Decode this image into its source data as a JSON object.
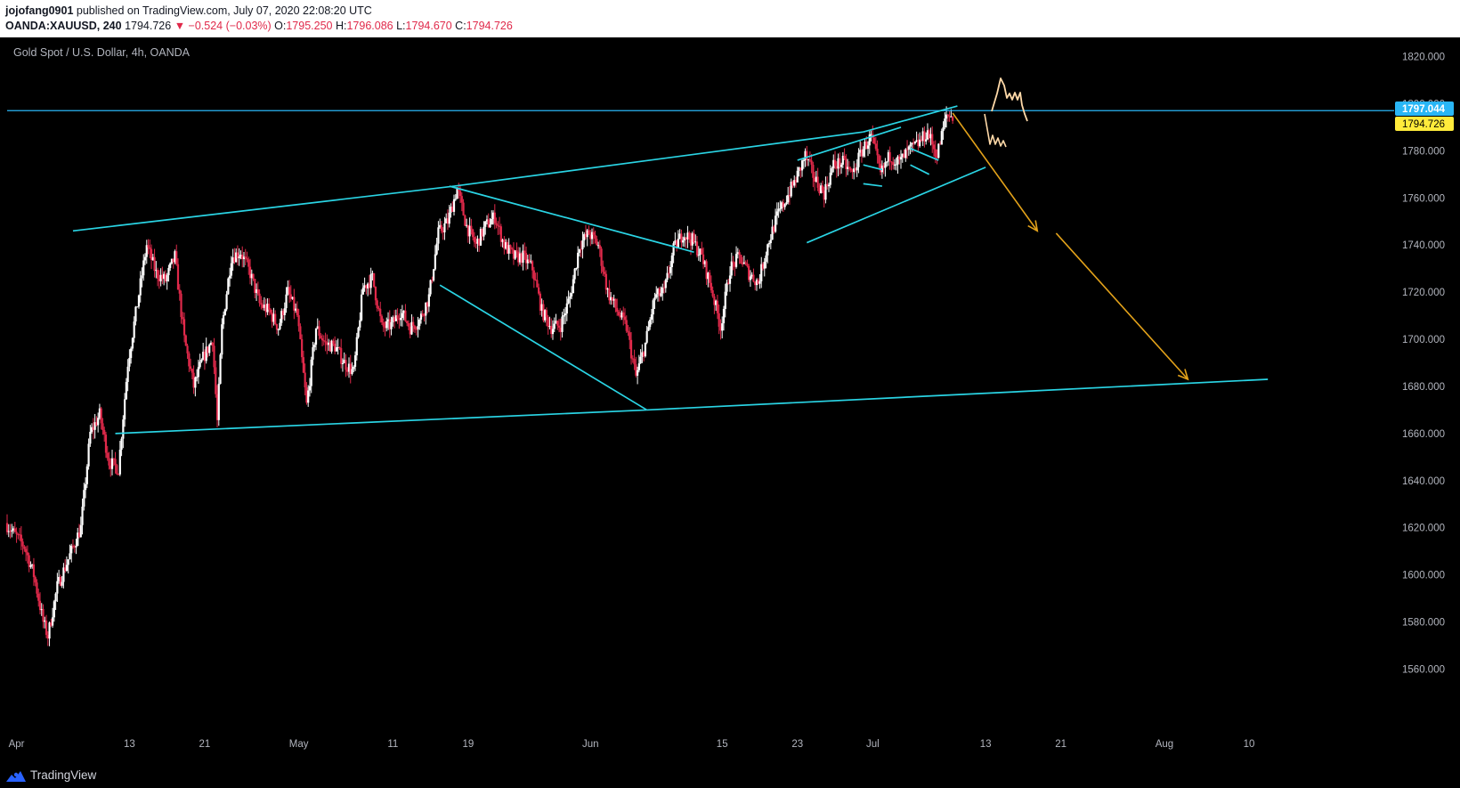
{
  "header": {
    "author": "jojofang0901",
    "published_text": "published on TradingView.com, July 07, 2020 22:08:20 UTC",
    "symbol": "OANDA:XAUUSD, 240",
    "last": "1794.726",
    "change": "▼ −0.524 (−0.03%)",
    "o_label": "O:",
    "o_value": "1795.250",
    "h_label": "H:",
    "h_value": "1796.086",
    "l_label": "L:",
    "l_value": "1794.670",
    "c_label": "C:",
    "c_value": "1794.726"
  },
  "chart_title": "Gold Spot / U.S. Dollar, 4h, OANDA",
  "price_labels": {
    "line_level": "1797.044",
    "last_price": "1794.726"
  },
  "footer": {
    "brand": "TradingView"
  },
  "colors": {
    "background": "#000000",
    "up_candle": "#ffffff",
    "down_candle": "#e0294a",
    "trendline": "#2ad4e4",
    "horizontal_line": "#29b6f6",
    "forecast_arrow": "#e3a21a",
    "sketch": "#ffd9a8",
    "last_price_badge": "#ffeb3b",
    "level_badge": "#29b6f6"
  },
  "chart_data": {
    "type": "candlestick",
    "title": "Gold Spot / U.S. Dollar, 4h, OANDA",
    "symbol": "OANDA:XAUUSD",
    "timeframe": "4h",
    "y_ticks": [
      1560,
      1580,
      1600,
      1620,
      1640,
      1660,
      1680,
      1700,
      1720,
      1740,
      1760,
      1780,
      1800,
      1820
    ],
    "y_tick_labels": [
      "1560.000",
      "1580.000",
      "1600.000",
      "1620.000",
      "1640.000",
      "1660.000",
      "1680.000",
      "1700.000",
      "1720.000",
      "1740.000",
      "1760.000",
      "1780.000",
      "1800.000",
      "1820.000"
    ],
    "x_tick_labels": [
      {
        "label": "Apr",
        "day": 1
      },
      {
        "label": "13",
        "day": 13
      },
      {
        "label": "21",
        "day": 21
      },
      {
        "label": "May",
        "day": 31
      },
      {
        "label": "11",
        "day": 41
      },
      {
        "label": "19",
        "day": 49
      },
      {
        "label": "Jun",
        "day": 62
      },
      {
        "label": "15",
        "day": 76
      },
      {
        "label": "23",
        "day": 84
      },
      {
        "label": "Jul",
        "day": 92
      },
      {
        "label": "13",
        "day": 104
      },
      {
        "label": "21",
        "day": 112
      },
      {
        "label": "Aug",
        "day": 123
      },
      {
        "label": "10",
        "day": 132
      }
    ],
    "ylim": [
      1553,
      1827
    ],
    "xlim": [
      0,
      146
    ],
    "anchors": [
      [
        0,
        1622
      ],
      [
        2,
        1612
      ],
      [
        3,
        1600
      ],
      [
        4,
        1580
      ],
      [
        4.5,
        1574
      ],
      [
        5.5,
        1595
      ],
      [
        7,
        1610
      ],
      [
        8,
        1620
      ],
      [
        9,
        1660
      ],
      [
        10,
        1668
      ],
      [
        11,
        1648
      ],
      [
        12,
        1645
      ],
      [
        13,
        1690
      ],
      [
        14,
        1715
      ],
      [
        15,
        1740
      ],
      [
        16,
        1728
      ],
      [
        17,
        1725
      ],
      [
        18,
        1735
      ],
      [
        19,
        1700
      ],
      [
        20,
        1680
      ],
      [
        21,
        1692
      ],
      [
        22,
        1700
      ],
      [
        22.5,
        1665
      ],
      [
        23,
        1705
      ],
      [
        24,
        1735
      ],
      [
        25,
        1737
      ],
      [
        26,
        1728
      ],
      [
        27,
        1715
      ],
      [
        28,
        1712
      ],
      [
        29,
        1705
      ],
      [
        30,
        1720
      ],
      [
        31,
        1710
      ],
      [
        32,
        1672
      ],
      [
        33,
        1705
      ],
      [
        34,
        1698
      ],
      [
        35,
        1697
      ],
      [
        36,
        1690
      ],
      [
        37,
        1686
      ],
      [
        38,
        1722
      ],
      [
        39,
        1726
      ],
      [
        40,
        1705
      ],
      [
        41,
        1706
      ],
      [
        42,
        1712
      ],
      [
        43,
        1705
      ],
      [
        44,
        1708
      ],
      [
        45,
        1718
      ],
      [
        46,
        1745
      ],
      [
        47,
        1750
      ],
      [
        48,
        1764
      ],
      [
        49,
        1748
      ],
      [
        50,
        1740
      ],
      [
        51,
        1748
      ],
      [
        52,
        1752
      ],
      [
        53,
        1740
      ],
      [
        54,
        1735
      ],
      [
        55,
        1735
      ],
      [
        56,
        1730
      ],
      [
        57,
        1712
      ],
      [
        58,
        1705
      ],
      [
        59,
        1706
      ],
      [
        60,
        1718
      ],
      [
        61,
        1740
      ],
      [
        62,
        1745
      ],
      [
        63,
        1740
      ],
      [
        64,
        1720
      ],
      [
        65,
        1712
      ],
      [
        66,
        1705
      ],
      [
        67,
        1684
      ],
      [
        68,
        1698
      ],
      [
        69,
        1718
      ],
      [
        70,
        1720
      ],
      [
        71,
        1738
      ],
      [
        72,
        1745
      ],
      [
        73,
        1742
      ],
      [
        74,
        1735
      ],
      [
        75,
        1722
      ],
      [
        76,
        1705
      ],
      [
        77,
        1730
      ],
      [
        78,
        1735
      ],
      [
        79,
        1728
      ],
      [
        80,
        1724
      ],
      [
        81,
        1740
      ],
      [
        82,
        1752
      ],
      [
        83,
        1760
      ],
      [
        84,
        1768
      ],
      [
        85,
        1778
      ],
      [
        86,
        1768
      ],
      [
        87,
        1762
      ],
      [
        88,
        1774
      ],
      [
        89,
        1775
      ],
      [
        90,
        1770
      ],
      [
        91,
        1780
      ],
      [
        92,
        1786
      ],
      [
        93,
        1770
      ],
      [
        94,
        1778
      ],
      [
        95,
        1775
      ],
      [
        96,
        1780
      ],
      [
        97,
        1783
      ],
      [
        98,
        1788
      ],
      [
        99,
        1778
      ],
      [
        100,
        1795
      ],
      [
        100.6,
        1794.7
      ]
    ],
    "ohlc_last": {
      "open": 1795.25,
      "high": 1796.086,
      "low": 1794.67,
      "close": 1794.726,
      "change": -0.524,
      "change_pct": -0.03
    },
    "drawings": {
      "horizontal_line": 1797.044,
      "lines": [
        [
          [
            7,
            1746
          ],
          [
            47.5,
            1765
          ]
        ],
        [
          [
            47.5,
            1765
          ],
          [
            91,
            1788
          ]
        ],
        [
          [
            91,
            1788
          ],
          [
            101,
            1799
          ]
        ],
        [
          [
            11.5,
            1660
          ],
          [
            68,
            1670
          ]
        ],
        [
          [
            68,
            1670
          ],
          [
            134,
            1683
          ]
        ],
        [
          [
            47,
            1765
          ],
          [
            73,
            1737
          ]
        ],
        [
          [
            46,
            1723
          ],
          [
            68,
            1670
          ]
        ],
        [
          [
            84,
            1776
          ],
          [
            95,
            1790
          ]
        ],
        [
          [
            85,
            1741
          ],
          [
            104,
            1773
          ]
        ],
        [
          [
            91,
            1774
          ],
          [
            93,
            1772
          ]
        ],
        [
          [
            91,
            1766
          ],
          [
            93,
            1765
          ]
        ],
        [
          [
            96,
            1781
          ],
          [
            99,
            1776
          ]
        ],
        [
          [
            96,
            1774
          ],
          [
            98,
            1770
          ]
        ]
      ],
      "arrows": [
        [
          [
            100.5,
            1796
          ],
          [
            109.5,
            1746
          ]
        ],
        [
          [
            111.5,
            1745
          ],
          [
            125.5,
            1683
          ]
        ]
      ]
    }
  }
}
